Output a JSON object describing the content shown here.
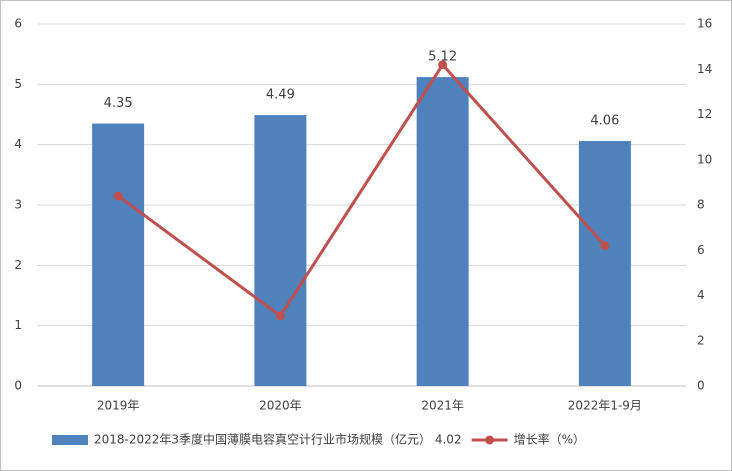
{
  "chart_data": {
    "type": "bar-line",
    "categories": [
      "2019年",
      "2020年",
      "2021年",
      "2022年1-9月"
    ],
    "series": [
      {
        "name": "2018-2022年3季度中国薄膜电容真空计行业市场规模（亿元） 4.02",
        "type": "bar",
        "color": "#4f81bd",
        "values": [
          4.35,
          4.49,
          5.12,
          4.06
        ]
      },
      {
        "name": "增长率（%）",
        "type": "line",
        "color": "#c0504d",
        "axis": "y2",
        "values": [
          8.4,
          3.1,
          14.2,
          6.2
        ]
      }
    ],
    "ylim": [
      0,
      6
    ],
    "yticks": [
      0,
      1,
      2,
      3,
      4,
      5,
      6
    ],
    "y2lim": [
      0,
      16
    ],
    "y2ticks": [
      0,
      2,
      4,
      6,
      8,
      10,
      12,
      14,
      16
    ],
    "grid": true
  }
}
